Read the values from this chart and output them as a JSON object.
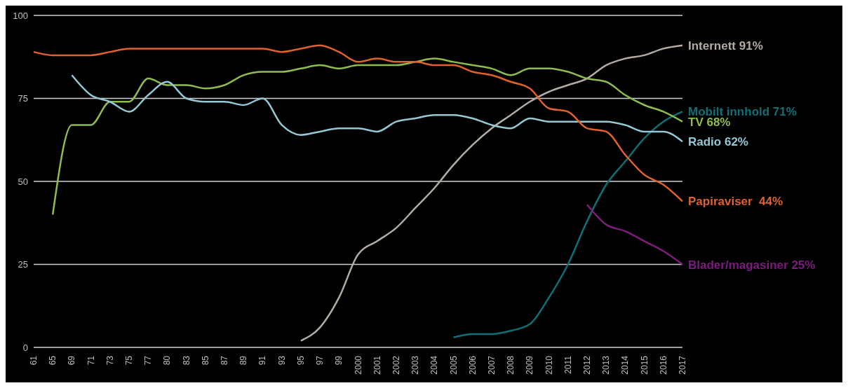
{
  "chart_data": {
    "type": "line",
    "categories": [
      "61",
      "65",
      "69",
      "71",
      "73",
      "75",
      "77",
      "80",
      "83",
      "85",
      "87",
      "89",
      "91",
      "93",
      "95",
      "97",
      "99",
      "2000",
      "2001",
      "2002",
      "2003",
      "2004",
      "2005",
      "2006",
      "2007",
      "2008",
      "2009",
      "2010",
      "2011",
      "2012",
      "2013",
      "2014",
      "2015",
      "2016",
      "2017"
    ],
    "ylim": [
      0,
      100
    ],
    "yticks": [
      0,
      25,
      50,
      75,
      100
    ],
    "grid": "y",
    "legend": false,
    "marker": "none",
    "line_style": "solid",
    "series": [
      {
        "name": "Internett 91%",
        "color": "#b3aca3",
        "values": [
          null,
          null,
          null,
          null,
          null,
          null,
          null,
          null,
          null,
          null,
          null,
          null,
          null,
          null,
          2,
          6,
          15,
          28,
          32,
          36,
          42,
          48,
          55,
          61,
          66,
          70,
          74,
          77,
          79,
          81,
          85,
          87,
          88,
          90,
          91
        ]
      },
      {
        "name": "Mobilt innhold 71%",
        "color": "#0e7077",
        "values": [
          null,
          null,
          null,
          null,
          null,
          null,
          null,
          null,
          null,
          null,
          null,
          null,
          null,
          null,
          null,
          null,
          null,
          null,
          null,
          null,
          null,
          null,
          3,
          4,
          4,
          5,
          7,
          15,
          25,
          38,
          49,
          56,
          63,
          68,
          71
        ]
      },
      {
        "name": "TV 68%",
        "color": "#8fbc4f",
        "values": [
          null,
          40,
          67,
          67,
          74,
          74,
          81,
          79,
          79,
          78,
          79,
          82,
          83,
          83,
          84,
          85,
          84,
          85,
          85,
          85,
          86,
          87,
          86,
          85,
          84,
          82,
          84,
          84,
          83,
          81,
          80,
          76,
          73,
          71,
          68
        ]
      },
      {
        "name": "Radio 62%",
        "color": "#94c8d4",
        "values": [
          null,
          null,
          82,
          76,
          74,
          71,
          76,
          80,
          75,
          74,
          74,
          73,
          75,
          67,
          64,
          65,
          66,
          66,
          65,
          68,
          69,
          70,
          70,
          69,
          67,
          66,
          69,
          68,
          68,
          68,
          68,
          67,
          65,
          65,
          62
        ]
      },
      {
        "name": "Papiraviser  44%",
        "color": "#e0622a",
        "values": [
          89,
          88,
          88,
          88,
          89,
          90,
          90,
          90,
          90,
          90,
          90,
          90,
          90,
          89,
          90,
          91,
          89,
          86,
          87,
          86,
          86,
          85,
          85,
          83,
          82,
          80,
          78,
          72,
          71,
          66,
          65,
          58,
          52,
          49,
          44
        ]
      },
      {
        "name": "Blader/magasiner 25%",
        "color": "#7b1e7e",
        "values": [
          null,
          null,
          null,
          null,
          null,
          null,
          null,
          null,
          null,
          null,
          null,
          null,
          null,
          null,
          null,
          null,
          null,
          null,
          null,
          null,
          null,
          null,
          null,
          null,
          null,
          null,
          null,
          null,
          null,
          43,
          37,
          35,
          32,
          29,
          25
        ]
      }
    ]
  }
}
